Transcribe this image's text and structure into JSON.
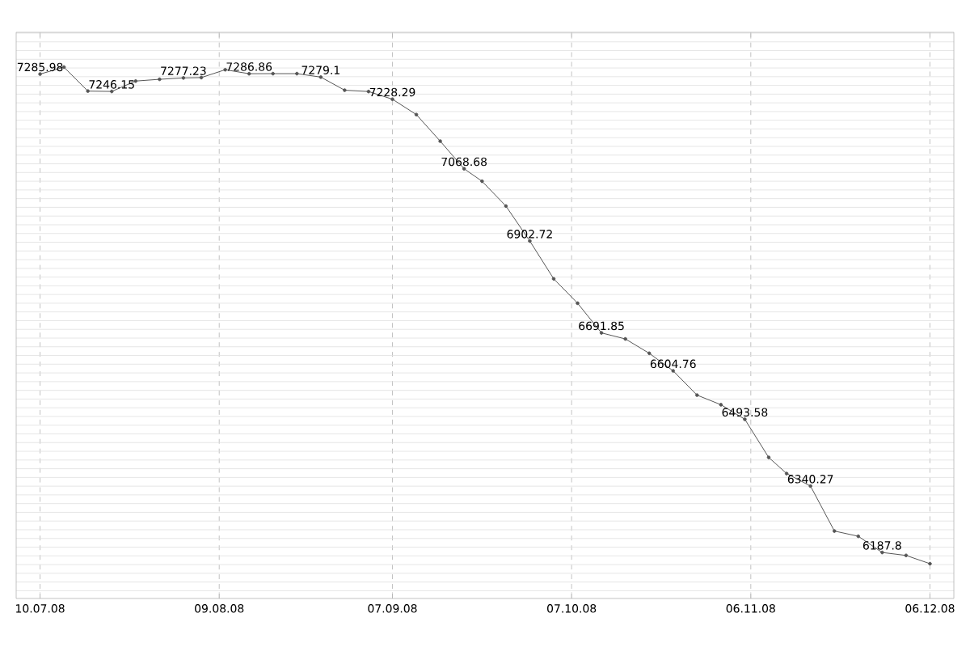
{
  "chart_data": {
    "type": "line",
    "x": [
      "2008-07-10",
      "2008-07-14",
      "2008-07-18",
      "2008-07-22",
      "2008-07-26",
      "2008-07-30",
      "2008-08-03",
      "2008-08-06",
      "2008-08-10",
      "2008-08-14",
      "2008-08-18",
      "2008-08-22",
      "2008-08-26",
      "2008-08-30",
      "2008-09-03",
      "2008-09-07",
      "2008-09-11",
      "2008-09-15",
      "2008-09-19",
      "2008-09-22",
      "2008-09-26",
      "2008-09-30",
      "2008-10-04",
      "2008-10-08",
      "2008-10-12",
      "2008-10-16",
      "2008-10-20",
      "2008-10-24",
      "2008-10-28",
      "2008-11-01",
      "2008-11-05",
      "2008-11-09",
      "2008-11-12",
      "2008-11-16",
      "2008-11-20",
      "2008-11-24",
      "2008-11-28",
      "2008-12-02",
      "2008-12-06"
    ],
    "values": [
      7285.98,
      7302,
      7247,
      7246.15,
      7270,
      7274,
      7277.23,
      7278,
      7296,
      7286.86,
      7287,
      7287,
      7279.1,
      7249,
      7246,
      7228.29,
      7193,
      7132,
      7068.68,
      7040,
      6983,
      6902.72,
      6816,
      6760,
      6691.85,
      6678,
      6645,
      6604.76,
      6549,
      6527,
      6493.58,
      6406,
      6369,
      6340.27,
      6237,
      6225,
      6187.8,
      6181,
      6162
    ],
    "value_labels": [
      "7285.98",
      null,
      null,
      "7246.15",
      null,
      null,
      "7277.23",
      null,
      null,
      "7286.86",
      null,
      null,
      "7279.1",
      null,
      null,
      "7228.29",
      null,
      null,
      "7068.68",
      null,
      null,
      "6902.72",
      null,
      null,
      "6691.85",
      null,
      null,
      "6604.76",
      null,
      null,
      "6493.58",
      null,
      null,
      "6340.27",
      null,
      null,
      "6187.8",
      null,
      null
    ],
    "color": "#555555",
    "marker": "circle",
    "grid": true,
    "tick_labels": "x",
    "xlim": [
      "2008-07-06",
      "2008-12-10"
    ],
    "xticks": [
      {
        "value": "2008-07-10",
        "label": "10.07.08"
      },
      {
        "value": "2008-08-09",
        "label": "09.08.08"
      },
      {
        "value": "2008-09-07",
        "label": "07.09.08"
      },
      {
        "value": "2008-10-07",
        "label": "07.10.08"
      },
      {
        "value": "2008-11-06",
        "label": "06.11.08"
      },
      {
        "value": "2008-12-06",
        "label": "06.12.08"
      }
    ]
  }
}
